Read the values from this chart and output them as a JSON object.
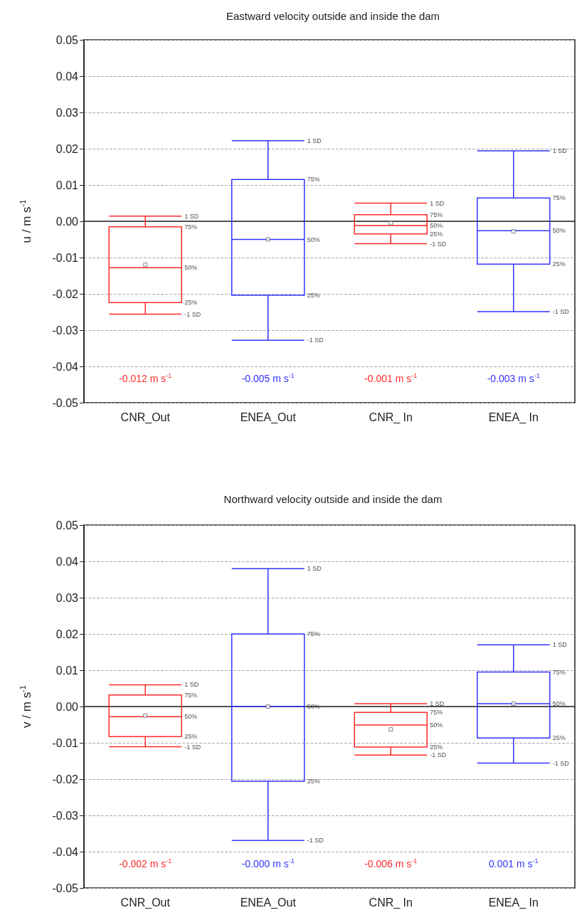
{
  "chart_data": [
    {
      "type": "box",
      "title": "Eastward velocity outside and inside the dam",
      "ylabel": "u / m s$^{-1}$",
      "categories": [
        "CNR_Out",
        "ENEA_Out",
        "CNR_ In",
        "ENEA_ In"
      ],
      "ylim": [
        -0.05,
        0.05
      ],
      "yticks": [
        -0.05,
        -0.04,
        -0.03,
        -0.02,
        -0.01,
        {
          "value": 0,
          "label": "0.00"
        },
        0.01,
        0.02,
        0.03,
        0.04,
        0.05
      ],
      "grid": "y",
      "series": [
        {
          "color": "#ff2a2a",
          "boxes": [
            {
              "low": -0.0256,
              "q1": -0.0224,
              "median": -0.0128,
              "q3": -0.0015,
              "high": 0.0014,
              "mean": -0.012
            },
            null,
            {
              "low": -0.0062,
              "q1": -0.0035,
              "median": -0.0012,
              "q3": 0.0018,
              "high": 0.005,
              "mean": -0.0005
            },
            null
          ]
        },
        {
          "color": "#3333ff",
          "boxes": [
            null,
            {
              "low": -0.0328,
              "q1": -0.0204,
              "median": -0.005,
              "q3": 0.0115,
              "high": 0.0222,
              "mean": -0.005
            },
            null,
            {
              "low": -0.0249,
              "q1": -0.0118,
              "median": -0.0026,
              "q3": 0.0064,
              "high": 0.0194,
              "mean": -0.0028
            }
          ]
        }
      ],
      "annotations": [
        "-0.012 m s$^{-1}$",
        "-0.005 m s$^{-1}$",
        "-0.001 m s$^{-1}$",
        "-0.003 m s$^{-1}$",
        "1 SD",
        "75%",
        "50%",
        "25%",
        "-1 SD",
        "1 SD",
        "75%",
        "50%",
        "25%",
        "-1 SD",
        "1 SD",
        "75%",
        "50%",
        "25%",
        "-1 SD",
        "1 SD",
        "75%",
        "50%",
        "25%",
        "-1 SD"
      ]
    },
    {
      "type": "box",
      "title": "Northward velocity outside and inside the dam",
      "ylabel": "v / m s$^{-1}$",
      "categories": [
        "CNR_Out",
        "ENEA_Out",
        "CNR_ In",
        "ENEA_ In"
      ],
      "ylim": [
        -0.05,
        0.05
      ],
      "yticks": [
        -0.05,
        -0.04,
        -0.03,
        -0.02,
        -0.01,
        {
          "value": 0,
          "label": "0.00"
        },
        0.01,
        0.02,
        0.03,
        0.04,
        0.05
      ],
      "grid": "y",
      "series": [
        {
          "color": "#ff2a2a",
          "boxes": [
            {
              "low": -0.0111,
              "q1": -0.0083,
              "median": -0.0028,
              "q3": 0.0032,
              "high": 0.006,
              "mean": -0.0025
            },
            null,
            {
              "low": -0.0134,
              "q1": -0.0112,
              "median": -0.0051,
              "q3": -0.0016,
              "high": 0.0008,
              "mean": -0.0063
            },
            null
          ]
        },
        {
          "color": "#3333ff",
          "boxes": [
            null,
            {
              "low": -0.0369,
              "q1": -0.0206,
              "median": 0,
              "q3": 0.02,
              "high": 0.038,
              "mean": 0
            },
            null,
            {
              "low": -0.0156,
              "q1": -0.0087,
              "median": 0.0008,
              "q3": 0.0095,
              "high": 0.017,
              "mean": 0.0008
            }
          ]
        }
      ],
      "annotations": [
        "-0.002 m s$^{-1}$",
        "-0.000 m s$^{-1}$",
        "-0.006 m s$^{-1}$",
        "0.001 m s$^{-1}$",
        "1 SD",
        "75%",
        "50%",
        "25%",
        "-1 SD",
        "1 SD",
        "75%",
        "50%",
        "25%",
        "-1 SD",
        "1 SD",
        "75%",
        "50%",
        "25%",
        "-1 SD",
        "1 SD",
        "75%",
        "50%",
        "25%",
        "-1 SD"
      ]
    }
  ]
}
